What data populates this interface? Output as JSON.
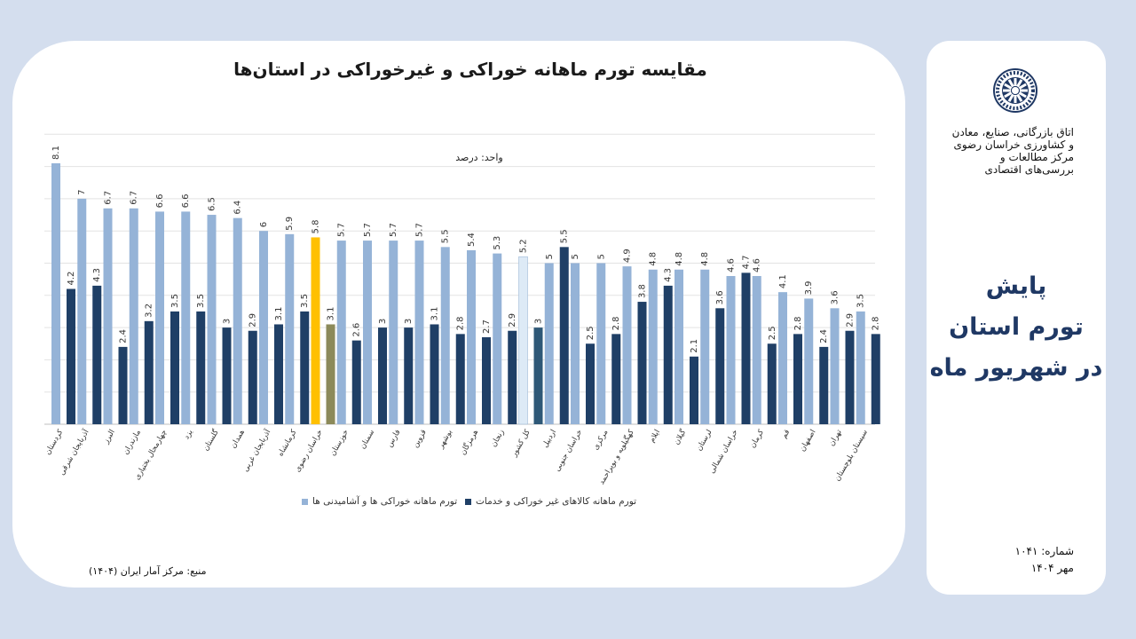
{
  "chart_data": {
    "type": "bar",
    "title": "مقایسه تورم ماهانه خوراکی و غیرخوراکی در استان‌ها",
    "unit_label": "واحد: درصد",
    "source": "منبع: مرکز آمار ایران (۱۴۰۴)",
    "ylim": [
      0,
      9
    ],
    "grid": true,
    "legend_position": "bottom",
    "categories": [
      "کردستان",
      "آذربایجان شرقی",
      "البرز",
      "مازندران",
      "چهارمحال بختیاری",
      "یزد",
      "گلستان",
      "همدان",
      "آذربایجان غربی",
      "کرمانشاه",
      "خراسان رضوی",
      "خوزستان",
      "سمنان",
      "فارس",
      "قزوین",
      "بوشهر",
      "هرمزگان",
      "زنجان",
      "کل کشور",
      "اردبیل",
      "خراسان جنوبی",
      "مرکزی",
      "کهگیلویه و بویراحمد",
      "ایلام",
      "گیلان",
      "لرستان",
      "خراسان شمالی",
      "کرمان",
      "قم",
      "اصفهان",
      "تهران",
      "سیستان بلوچستان"
    ],
    "series": [
      {
        "name": "تورم ماهانه خوراکی ها و آشامیدنی ها",
        "color": "#95b3d7",
        "values": [
          8.1,
          7,
          6.7,
          6.7,
          6.6,
          6.6,
          6.5,
          6.4,
          6,
          5.9,
          5.8,
          5.7,
          5.7,
          5.7,
          5.7,
          5.5,
          5.4,
          5.3,
          5.2,
          5,
          5,
          5,
          4.9,
          4.8,
          4.8,
          4.8,
          4.6,
          4.6,
          4.1,
          3.9,
          3.6,
          3.5
        ],
        "labels": [
          "8.1",
          "7",
          "6.7",
          "6.7",
          "6.6",
          "6.6",
          "6.5",
          "6.4",
          "6",
          "5.9",
          "5.8",
          "5.7",
          "5.7",
          "5.7",
          "5.7",
          "5.5",
          "5.4",
          "5.3",
          "5.2",
          "5",
          "5",
          "5",
          "4.9",
          "4.8",
          "4.8",
          "4.8",
          "4.6",
          "4.6",
          "4.1",
          "3.9",
          "3.6",
          "3.5"
        ]
      },
      {
        "name": "تورم ماهانه کالاهای غیر خوراکی و خدمات",
        "color": "#1f3f66",
        "values": [
          4.2,
          4.3,
          2.4,
          3.2,
          3.5,
          3.5,
          3,
          2.9,
          3.1,
          3.5,
          3.1,
          2.6,
          3,
          3,
          3.1,
          2.8,
          2.7,
          2.9,
          3,
          5.5,
          2.5,
          2.8,
          3.8,
          4.3,
          2.1,
          3.6,
          4.7,
          2.5,
          2.8,
          2.4,
          2.9,
          2.8
        ],
        "labels": [
          "4.2",
          "4.3",
          "2.4",
          "3.2",
          "3.5",
          "3.5",
          "3",
          "2.9",
          "3.1",
          "3.5",
          "3.1",
          "2.6",
          "3",
          "3",
          "3.1",
          "2.8",
          "2.7",
          "2.9",
          "3",
          "5.5",
          "2.5",
          "2.8",
          "3.8",
          "4.3",
          "2.1",
          "3.6",
          "4.7",
          "2.5",
          "2.8",
          "2.4",
          "2.9",
          "2.8"
        ]
      }
    ],
    "highlight": {
      "category": "خراسان رضوی",
      "series_colors": [
        "#ffc000",
        "#8c8a5a"
      ]
    },
    "national": {
      "category": "کل کشور",
      "series_colors": [
        "#ddeaf6",
        "#2e5877"
      ]
    }
  },
  "sidebar": {
    "org_lines": [
      "اتاق بازرگانی، صنایع، معادن",
      "و کشاورزی خراسان رضوی",
      "مرکز مطالعات و",
      "بررسی‌های اقتصادی"
    ],
    "title_lines": [
      "پایش",
      "تورم استان",
      "در شهریور ماه"
    ],
    "issue_label": "شماره: ۱۰۴۱",
    "date_label": "مهر ۱۴۰۴"
  },
  "colors": {
    "accent": "#1f3864",
    "background": "#d4deee"
  }
}
